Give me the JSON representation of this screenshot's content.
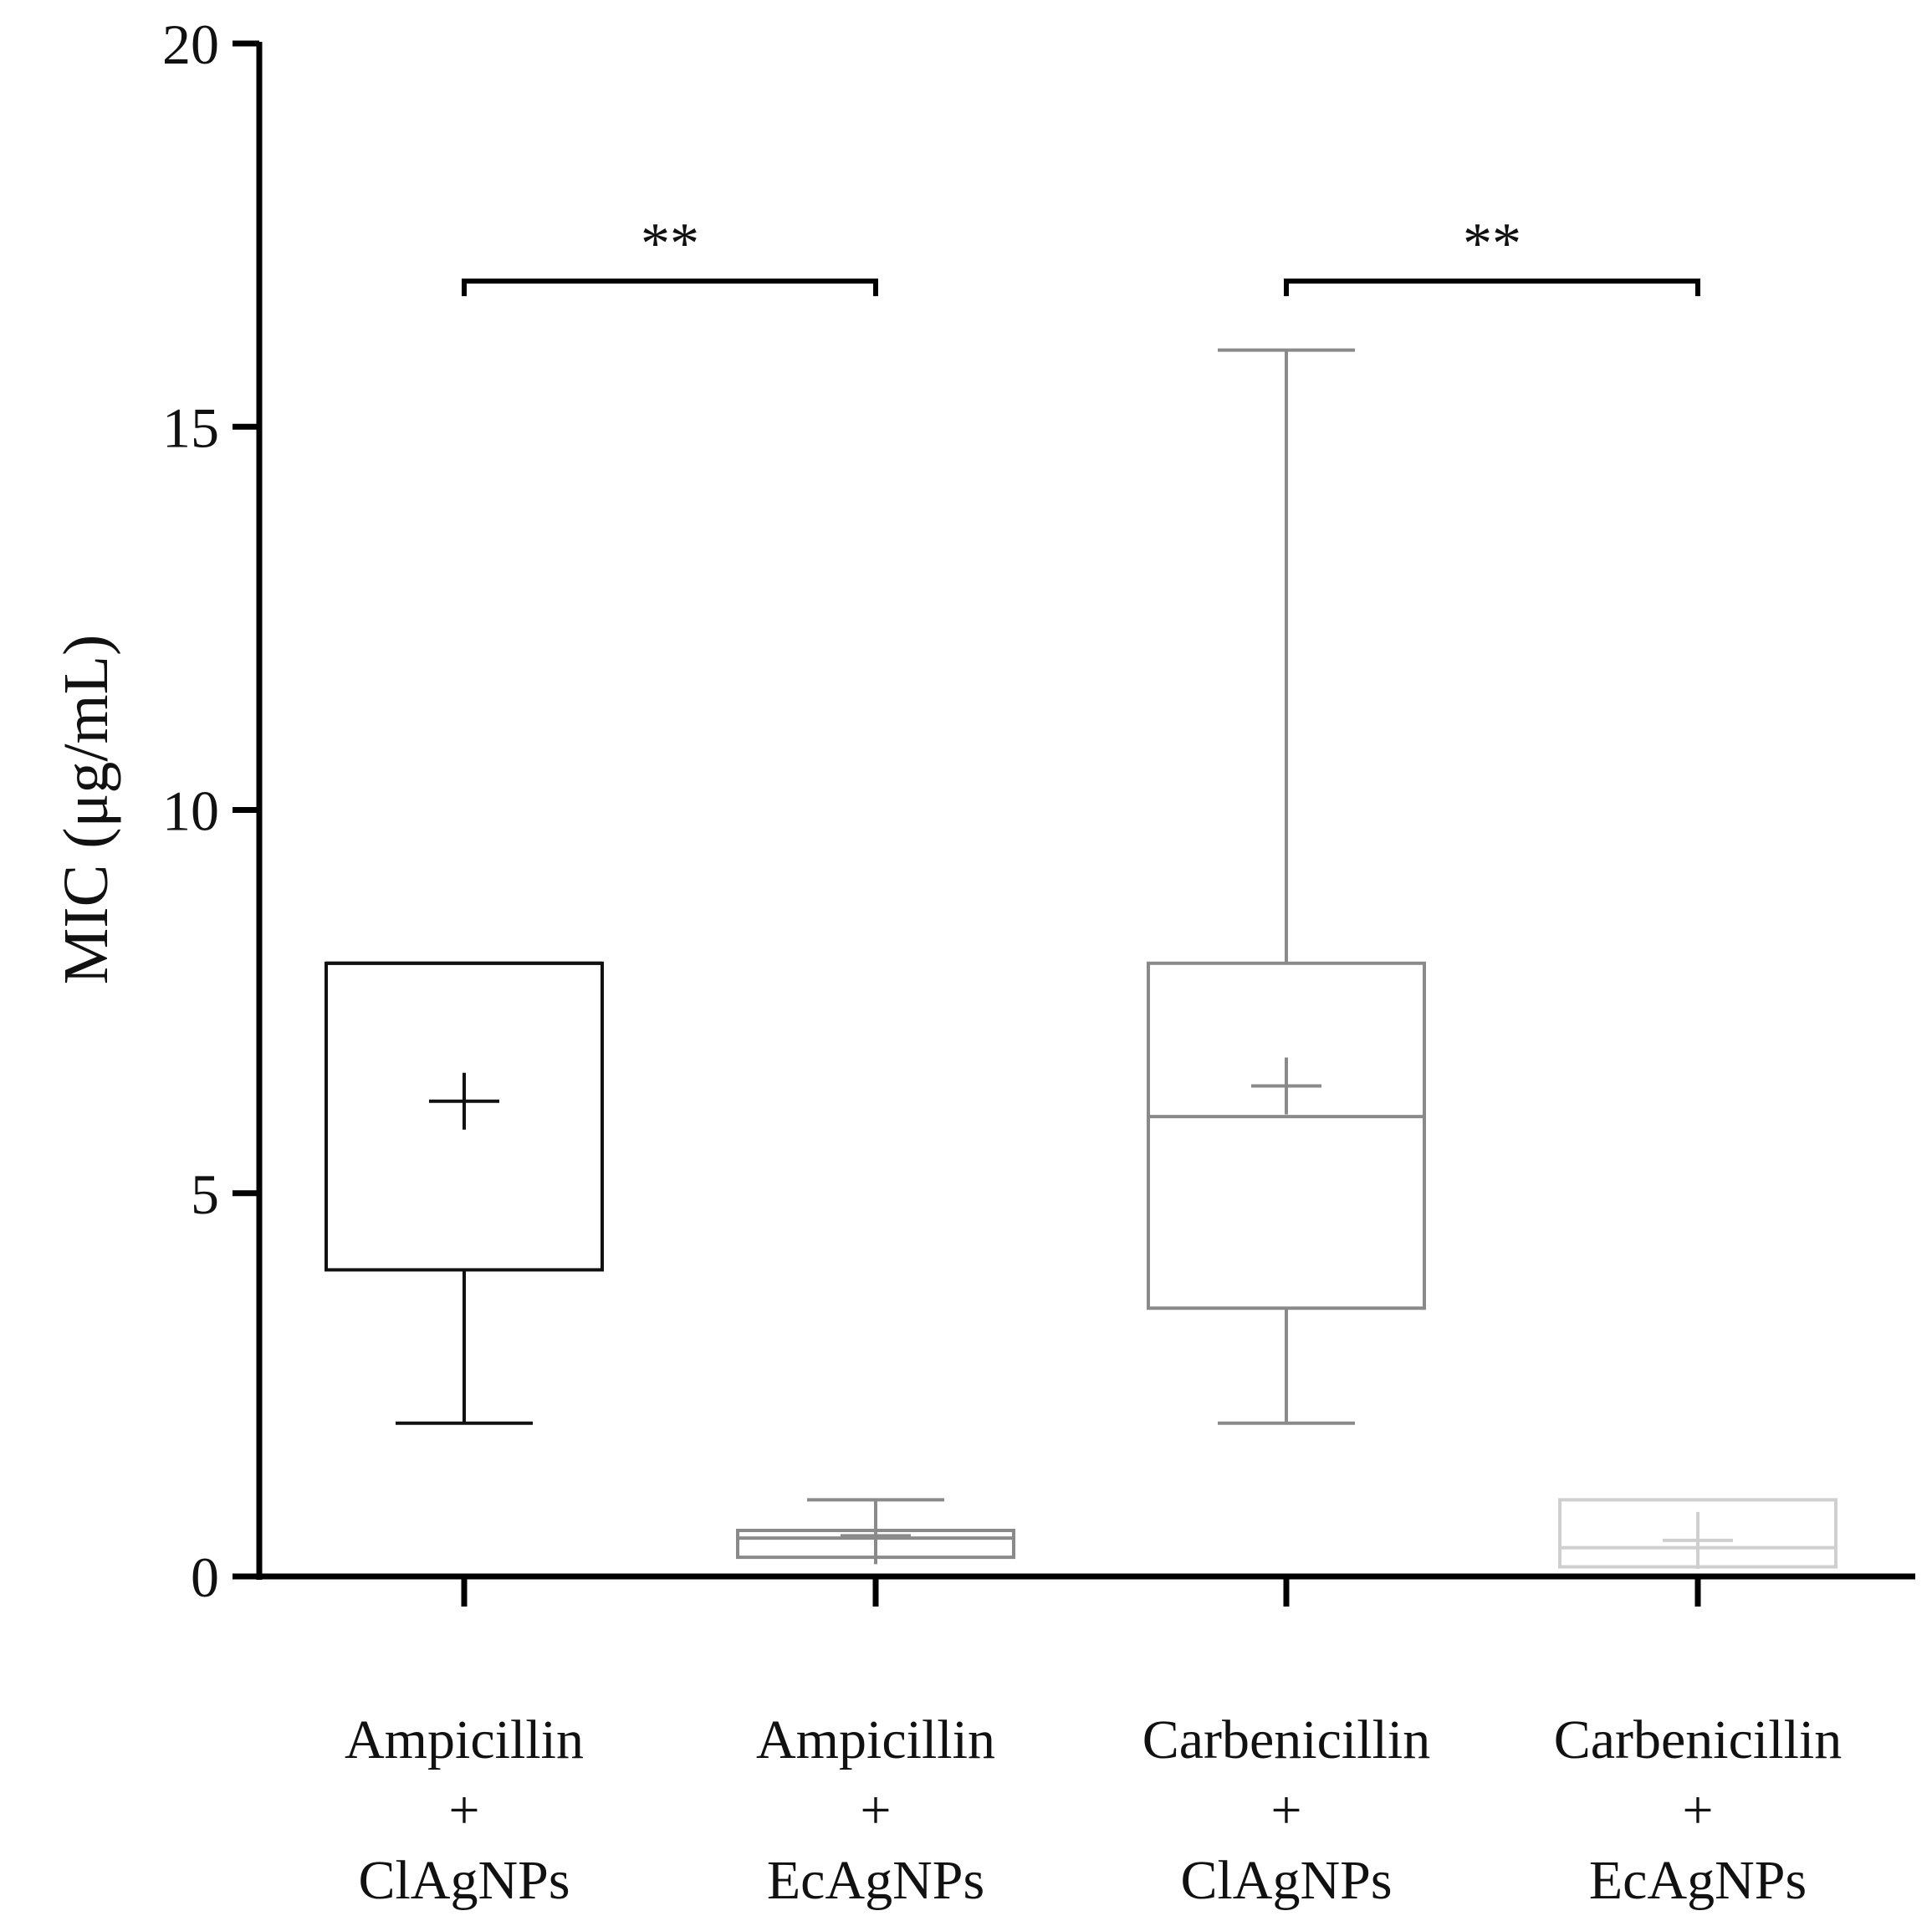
{
  "chart_data": {
    "type": "boxplot",
    "ylabel": "MIC (μg/mL)",
    "ylim": [
      0,
      20
    ],
    "yticks": [
      0,
      5,
      10,
      15,
      20
    ],
    "ytick_labels": [
      "0",
      "5",
      "10",
      "15",
      "20"
    ],
    "categories": [
      {
        "lines": [
          "Ampicillin",
          "+",
          "ClAgNPs"
        ]
      },
      {
        "lines": [
          "Ampicillin",
          "+",
          "EcAgNPs"
        ]
      },
      {
        "lines": [
          "Carbenicillin",
          "+",
          "ClAgNPs"
        ]
      },
      {
        "lines": [
          "Carbenicillin",
          "+",
          "EcAgNPs"
        ]
      }
    ],
    "series": [
      {
        "name": "Ampicillin + ClAgNPs",
        "min": 2,
        "q1": 4,
        "median": 8,
        "q3": 8,
        "max": 8,
        "mean": 6.2,
        "color": "#111111"
      },
      {
        "name": "Ampicillin + EcAgNPs",
        "min": 0.25,
        "q1": 0.25,
        "median": 0.5,
        "q3": 0.6,
        "max": 1.0,
        "mean": 0.53,
        "color": "#8a8a8a"
      },
      {
        "name": "Carbenicillin + ClAgNPs",
        "min": 2,
        "q1": 3.5,
        "median": 6,
        "q3": 8,
        "max": 16,
        "mean": 6.4,
        "color": "#8a8a8a"
      },
      {
        "name": "Carbenicillin + EcAgNPs",
        "min": 0.125,
        "q1": 0.125,
        "median": 0.375,
        "q3": 1.0,
        "max": 1.0,
        "mean": 0.47,
        "color": "#cfcfcf"
      }
    ],
    "significance": [
      {
        "from": 0,
        "to": 1,
        "y": 16.9,
        "label": "**"
      },
      {
        "from": 2,
        "to": 3,
        "y": 16.9,
        "label": "**"
      }
    ]
  }
}
